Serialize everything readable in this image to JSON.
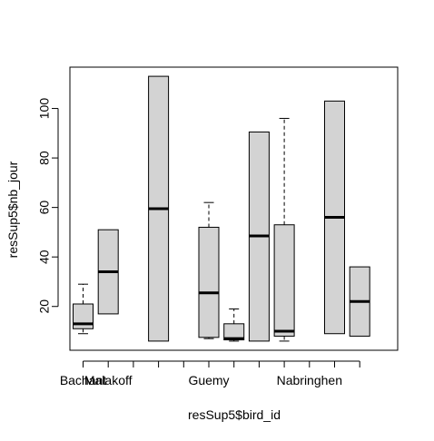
{
  "chart_data": {
    "type": "boxplot",
    "title": "",
    "xlabel": "resSup5$bird_id",
    "ylabel": "resSup5$nb_jour",
    "ylim": [
      2.3,
      116.7
    ],
    "y_ticks": [
      20,
      40,
      60,
      80,
      100
    ],
    "x_tick_labels": [
      "Bachant",
      "Malakoff",
      "",
      "",
      "",
      "Guemy",
      "",
      "",
      "",
      "Nabringhen",
      "",
      ""
    ],
    "grid": false,
    "legend": "none",
    "box_fill": "#d3d3d3",
    "line_color": "#000000",
    "boxes": [
      {
        "category": "Bachant",
        "whisker_low": 9,
        "q1": 11,
        "median": 13,
        "q3": 21,
        "whisker_high": 29
      },
      {
        "category": "Malakoff",
        "whisker_low": 17,
        "q1": 17,
        "median": 34,
        "q3": 51,
        "whisker_high": 51
      },
      {
        "category": "",
        "empty": true
      },
      {
        "category": "",
        "whisker_low": 6,
        "q1": 6,
        "median": 59.5,
        "q3": 113,
        "whisker_high": 113
      },
      {
        "category": "",
        "empty": true
      },
      {
        "category": "Guemy",
        "whisker_low": 7,
        "q1": 7.5,
        "median": 25.5,
        "q3": 52,
        "whisker_high": 62
      },
      {
        "category": "",
        "whisker_low": 6,
        "q1": 6.5,
        "median": 7,
        "q3": 13,
        "whisker_high": 19
      },
      {
        "category": "",
        "whisker_low": 6,
        "q1": 6,
        "median": 48.5,
        "q3": 90.5,
        "whisker_high": 90.5
      },
      {
        "category": "",
        "whisker_low": 6,
        "q1": 8,
        "median": 10,
        "q3": 53,
        "whisker_high": 96
      },
      {
        "category": "Nabringhen",
        "empty": true
      },
      {
        "category": "",
        "whisker_low": 9,
        "q1": 9,
        "median": 56,
        "q3": 103,
        "whisker_high": 103
      },
      {
        "category": "",
        "whisker_low": 8,
        "q1": 8,
        "median": 22,
        "q3": 36,
        "whisker_high": 36
      }
    ]
  }
}
